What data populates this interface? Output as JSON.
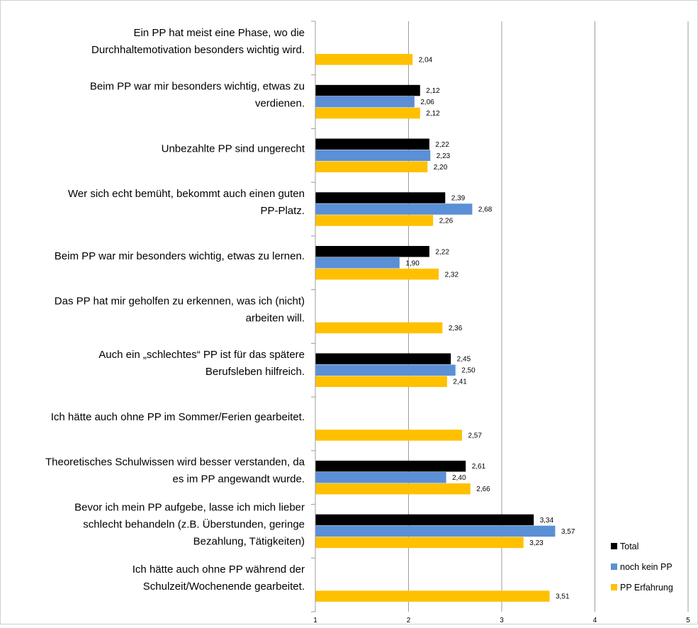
{
  "chart_data": {
    "type": "bar",
    "orientation": "horizontal",
    "title": "",
    "xlabel": "",
    "ylabel": "",
    "xlim": [
      1,
      5
    ],
    "xticks": [
      "1",
      "2",
      "3",
      "4",
      "5"
    ],
    "grid": "vertical",
    "legend_position": "bottom-right",
    "categories": [
      [
        "Ein PP hat meist eine Phase, wo die",
        "Durchhaltemotivation besonders wichtig wird."
      ],
      [
        "Beim PP war mir besonders wichtig, etwas zu",
        "verdienen."
      ],
      [
        "Unbezahlte PP sind ungerecht"
      ],
      [
        "Wer sich echt bemüht, bekommt auch einen guten",
        "PP-Platz."
      ],
      [
        "Beim PP war mir besonders wichtig, etwas zu lernen."
      ],
      [
        "Das PP hat mir geholfen zu erkennen, was ich (nicht)",
        "arbeiten will."
      ],
      [
        "Auch ein „schlechtes“ PP ist für das spätere",
        "Berufsleben hilfreich."
      ],
      [
        "Ich hätte auch ohne PP im Sommer/Ferien gearbeitet."
      ],
      [
        "Theoretisches Schulwissen wird besser verstanden, da",
        "es im PP angewandt wurde."
      ],
      [
        "Bevor ich mein PP aufgebe, lasse ich mich lieber",
        "schlecht behandeln (z.B. Überstunden, geringe",
        "Bezahlung, Tätigkeiten)"
      ],
      [
        "Ich hätte auch ohne PP während der",
        "Schulzeit/Wochenende gearbeitet."
      ]
    ],
    "series": [
      {
        "name": "Total",
        "color": "#000000",
        "values": [
          null,
          2.12,
          2.22,
          2.39,
          2.22,
          null,
          2.45,
          null,
          2.61,
          3.34,
          null
        ],
        "labels": [
          null,
          "2,12",
          "2,22",
          "2,39",
          "2,22",
          null,
          "2,45",
          null,
          "2,61",
          "3,34",
          null
        ]
      },
      {
        "name": "noch kein PP",
        "color": "#5b8fd6",
        "values": [
          null,
          2.06,
          2.23,
          2.68,
          1.9,
          null,
          2.5,
          null,
          2.4,
          3.57,
          null
        ],
        "labels": [
          null,
          "2,06",
          "2,23",
          "2,68",
          "1,90",
          null,
          "2,50",
          null,
          "2,40",
          "3,57",
          null
        ]
      },
      {
        "name": "PP Erfahrung",
        "color": "#ffc000",
        "values": [
          2.04,
          2.12,
          2.2,
          2.26,
          2.32,
          2.36,
          2.41,
          2.57,
          2.66,
          3.23,
          3.51
        ],
        "labels": [
          "2,04",
          "2,12",
          "2,20",
          "2,26",
          "2,32",
          "2,36",
          "2,41",
          "2,57",
          "2,66",
          "3,23",
          "3,51"
        ]
      }
    ]
  }
}
